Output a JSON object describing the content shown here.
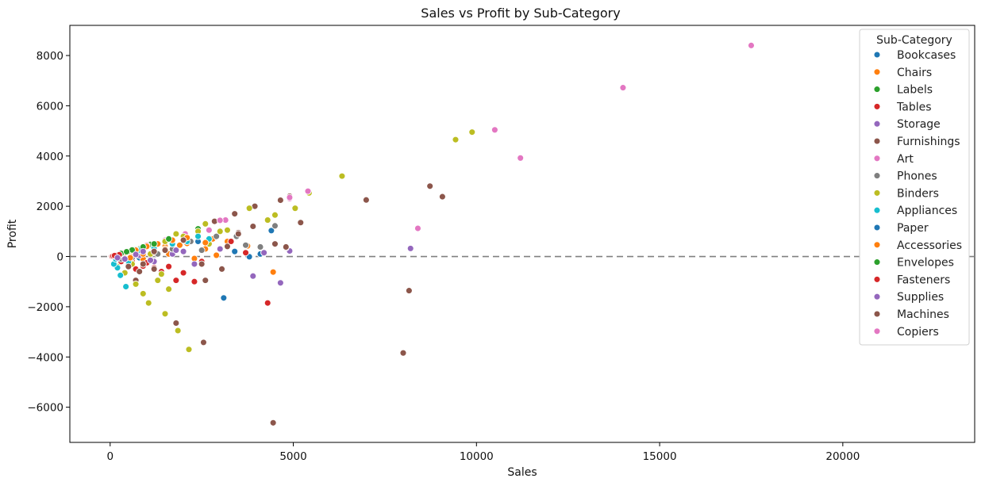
{
  "chart_data": {
    "type": "scatter",
    "title": "Sales vs Profit by Sub-Category",
    "xlabel": "Sales",
    "ylabel": "Profit",
    "xlim": [
      -1100,
      23600
    ],
    "ylim": [
      -7400,
      9200
    ],
    "xticks": [
      0,
      5000,
      10000,
      15000,
      20000
    ],
    "yticks": [
      -6000,
      -4000,
      -2000,
      0,
      2000,
      4000,
      6000,
      8000
    ],
    "xtick_labels": [
      "0",
      "5000",
      "10000",
      "15000",
      "20000"
    ],
    "ytick_labels": [
      "−6000",
      "−4000",
      "−2000",
      "0",
      "2000",
      "4000",
      "6000",
      "8000"
    ],
    "grid": false,
    "reference_line": {
      "y": 0,
      "style": "dashed",
      "color": "#808080"
    },
    "legend": {
      "title": "Sub-Category",
      "placement": "upper right"
    },
    "series": [
      {
        "name": "Bookcases",
        "color": "#1f77b4",
        "points": [
          [
            3100,
            -1650
          ],
          [
            4400,
            1030
          ],
          [
            4100,
            100
          ],
          [
            3400,
            200
          ],
          [
            2500,
            -300
          ],
          [
            1200,
            300
          ],
          [
            800,
            -50
          ],
          [
            300,
            80
          ],
          [
            1900,
            450
          ],
          [
            2400,
            600
          ],
          [
            3800,
            -10
          ]
        ]
      },
      {
        "name": "Chairs",
        "color": "#ff7f0e",
        "points": [
          [
            4450,
            -620
          ],
          [
            3750,
            420
          ],
          [
            2600,
            300
          ],
          [
            2100,
            520
          ],
          [
            1800,
            250
          ],
          [
            1500,
            400
          ],
          [
            1200,
            150
          ],
          [
            900,
            -100
          ],
          [
            600,
            200
          ],
          [
            300,
            80
          ],
          [
            3200,
            600
          ],
          [
            2800,
            700
          ],
          [
            1000,
            420
          ],
          [
            1600,
            100
          ],
          [
            2300,
            -80
          ],
          [
            2900,
            50
          ],
          [
            500,
            -150
          ]
        ]
      },
      {
        "name": "Labels",
        "color": "#2ca02c",
        "points": [
          [
            200,
            60
          ],
          [
            500,
            200
          ],
          [
            800,
            300
          ],
          [
            1500,
            650
          ],
          [
            2400,
            1100
          ],
          [
            350,
            150
          ],
          [
            1100,
            480
          ]
        ]
      },
      {
        "name": "Tables",
        "color": "#d62728",
        "points": [
          [
            4300,
            -1850
          ],
          [
            2300,
            -1000
          ],
          [
            1800,
            -950
          ],
          [
            2000,
            -650
          ],
          [
            1400,
            -600
          ],
          [
            1200,
            -450
          ],
          [
            900,
            -380
          ],
          [
            700,
            -500
          ],
          [
            500,
            -300
          ],
          [
            300,
            -200
          ],
          [
            1000,
            -250
          ],
          [
            1600,
            -400
          ],
          [
            2500,
            -200
          ],
          [
            3700,
            150
          ],
          [
            3300,
            600
          ],
          [
            600,
            -150
          ]
        ]
      },
      {
        "name": "Storage",
        "color": "#9467bd",
        "points": [
          [
            4650,
            -1050
          ],
          [
            3900,
            -780
          ],
          [
            4900,
            220
          ],
          [
            4200,
            150
          ],
          [
            2300,
            -320
          ],
          [
            1700,
            100
          ],
          [
            1200,
            -200
          ],
          [
            800,
            50
          ],
          [
            500,
            -80
          ],
          [
            3000,
            300
          ],
          [
            2000,
            200
          ]
        ]
      },
      {
        "name": "Furnishings",
        "color": "#8c564b",
        "points": [
          [
            4450,
            -6620
          ],
          [
            2550,
            -3420
          ],
          [
            1800,
            -2650
          ],
          [
            2600,
            -950
          ],
          [
            3050,
            -500
          ],
          [
            700,
            -950
          ],
          [
            5200,
            1360
          ],
          [
            4650,
            2240
          ],
          [
            4900,
            2400
          ],
          [
            3950,
            2000
          ],
          [
            3400,
            1700
          ],
          [
            2850,
            1400
          ],
          [
            4800,
            350
          ],
          [
            4500,
            500
          ],
          [
            3500,
            950
          ],
          [
            1200,
            -500
          ],
          [
            900,
            -300
          ]
        ]
      },
      {
        "name": "Art",
        "color": "#e377c2",
        "points": [
          [
            5400,
            2600
          ],
          [
            4900,
            2300
          ],
          [
            3150,
            1450
          ],
          [
            2050,
            900
          ],
          [
            1000,
            450
          ],
          [
            500,
            200
          ],
          [
            2700,
            1050
          ],
          [
            1500,
            650
          ],
          [
            300,
            100
          ]
        ]
      },
      {
        "name": "Phones",
        "color": "#7f7f7f",
        "points": [
          [
            4500,
            1220
          ],
          [
            4100,
            380
          ],
          [
            3450,
            800
          ],
          [
            2900,
            800
          ],
          [
            2200,
            600
          ],
          [
            1700,
            300
          ],
          [
            1300,
            100
          ],
          [
            900,
            200
          ],
          [
            600,
            -50
          ],
          [
            3700,
            450
          ],
          [
            2500,
            250
          ],
          [
            300,
            -100
          ]
        ]
      },
      {
        "name": "Binders",
        "color": "#bcbd22",
        "points": [
          [
            9880,
            4950
          ],
          [
            9430,
            4650
          ],
          [
            6330,
            3200
          ],
          [
            5430,
            2530
          ],
          [
            5050,
            1920
          ],
          [
            4500,
            1650
          ],
          [
            4300,
            1450
          ],
          [
            3800,
            1920
          ],
          [
            3200,
            1050
          ],
          [
            2600,
            1300
          ],
          [
            2150,
            -3700
          ],
          [
            1850,
            -2950
          ],
          [
            1500,
            -2280
          ],
          [
            1050,
            -1850
          ],
          [
            900,
            -1480
          ],
          [
            700,
            -1100
          ],
          [
            1600,
            -1300
          ],
          [
            1300,
            -950
          ],
          [
            400,
            -650
          ],
          [
            200,
            -400
          ],
          [
            500,
            200
          ],
          [
            1000,
            400
          ],
          [
            1500,
            600
          ],
          [
            2000,
            800
          ],
          [
            2700,
            500
          ],
          [
            3000,
            1000
          ],
          [
            2400,
            1000
          ],
          [
            1800,
            900
          ],
          [
            1100,
            100
          ],
          [
            600,
            -300
          ],
          [
            1400,
            -700
          ]
        ]
      },
      {
        "name": "Appliances",
        "color": "#17becf",
        "points": [
          [
            430,
            -1200
          ],
          [
            280,
            -750
          ],
          [
            200,
            -450
          ],
          [
            100,
            -300
          ],
          [
            300,
            100
          ],
          [
            2700,
            700
          ],
          [
            2400,
            800
          ],
          [
            1700,
            500
          ],
          [
            1200,
            350
          ],
          [
            800,
            250
          ],
          [
            500,
            -200
          ],
          [
            2100,
            600
          ],
          [
            150,
            -100
          ]
        ]
      },
      {
        "name": "Paper",
        "color": "#1f77b4",
        "points": [
          [
            50,
            20
          ],
          [
            150,
            60
          ],
          [
            250,
            100
          ],
          [
            400,
            150
          ],
          [
            600,
            250
          ],
          [
            100,
            30
          ],
          [
            350,
            120
          ],
          [
            700,
            280
          ],
          [
            200,
            70
          ]
        ]
      },
      {
        "name": "Accessories",
        "color": "#ff7f0e",
        "points": [
          [
            400,
            150
          ],
          [
            700,
            250
          ],
          [
            1000,
            400
          ],
          [
            1300,
            500
          ],
          [
            1700,
            650
          ],
          [
            2100,
            750
          ],
          [
            2600,
            550
          ],
          [
            1500,
            300
          ],
          [
            900,
            100
          ],
          [
            550,
            -50
          ],
          [
            1900,
            450
          ],
          [
            300,
            100
          ]
        ]
      },
      {
        "name": "Envelopes",
        "color": "#2ca02c",
        "points": [
          [
            300,
            120
          ],
          [
            600,
            260
          ],
          [
            900,
            380
          ],
          [
            1200,
            500
          ],
          [
            1600,
            700
          ],
          [
            450,
            190
          ]
        ]
      },
      {
        "name": "Fasteners",
        "color": "#d62728",
        "points": [
          [
            50,
            10
          ],
          [
            100,
            30
          ],
          [
            150,
            40
          ],
          [
            200,
            60
          ],
          [
            250,
            70
          ],
          [
            80,
            20
          ],
          [
            120,
            35
          ]
        ]
      },
      {
        "name": "Supplies",
        "color": "#9467bd",
        "points": [
          [
            8200,
            320
          ],
          [
            4200,
            150
          ],
          [
            2300,
            -300
          ],
          [
            1100,
            -150
          ],
          [
            700,
            80
          ],
          [
            400,
            -100
          ],
          [
            1800,
            250
          ],
          [
            3000,
            300
          ],
          [
            900,
            200
          ],
          [
            200,
            -50
          ]
        ]
      },
      {
        "name": "Machines",
        "color": "#8c564b",
        "points": [
          [
            8000,
            -3840
          ],
          [
            8160,
            -1360
          ],
          [
            8730,
            2800
          ],
          [
            9070,
            2380
          ],
          [
            6990,
            2250
          ],
          [
            5200,
            1350
          ],
          [
            4800,
            380
          ],
          [
            3500,
            900
          ],
          [
            2500,
            -300
          ],
          [
            1200,
            200
          ],
          [
            800,
            -600
          ],
          [
            3900,
            1200
          ],
          [
            2000,
            650
          ],
          [
            500,
            -400
          ],
          [
            1500,
            250
          ],
          [
            3200,
            400
          ]
        ]
      },
      {
        "name": "Copiers",
        "color": "#e377c2",
        "points": [
          [
            17500,
            8400
          ],
          [
            14000,
            6720
          ],
          [
            10500,
            5040
          ],
          [
            11200,
            3920
          ],
          [
            8400,
            1120
          ],
          [
            5400,
            2600
          ],
          [
            3000,
            1440
          ],
          [
            4900,
            2350
          ]
        ]
      }
    ]
  }
}
